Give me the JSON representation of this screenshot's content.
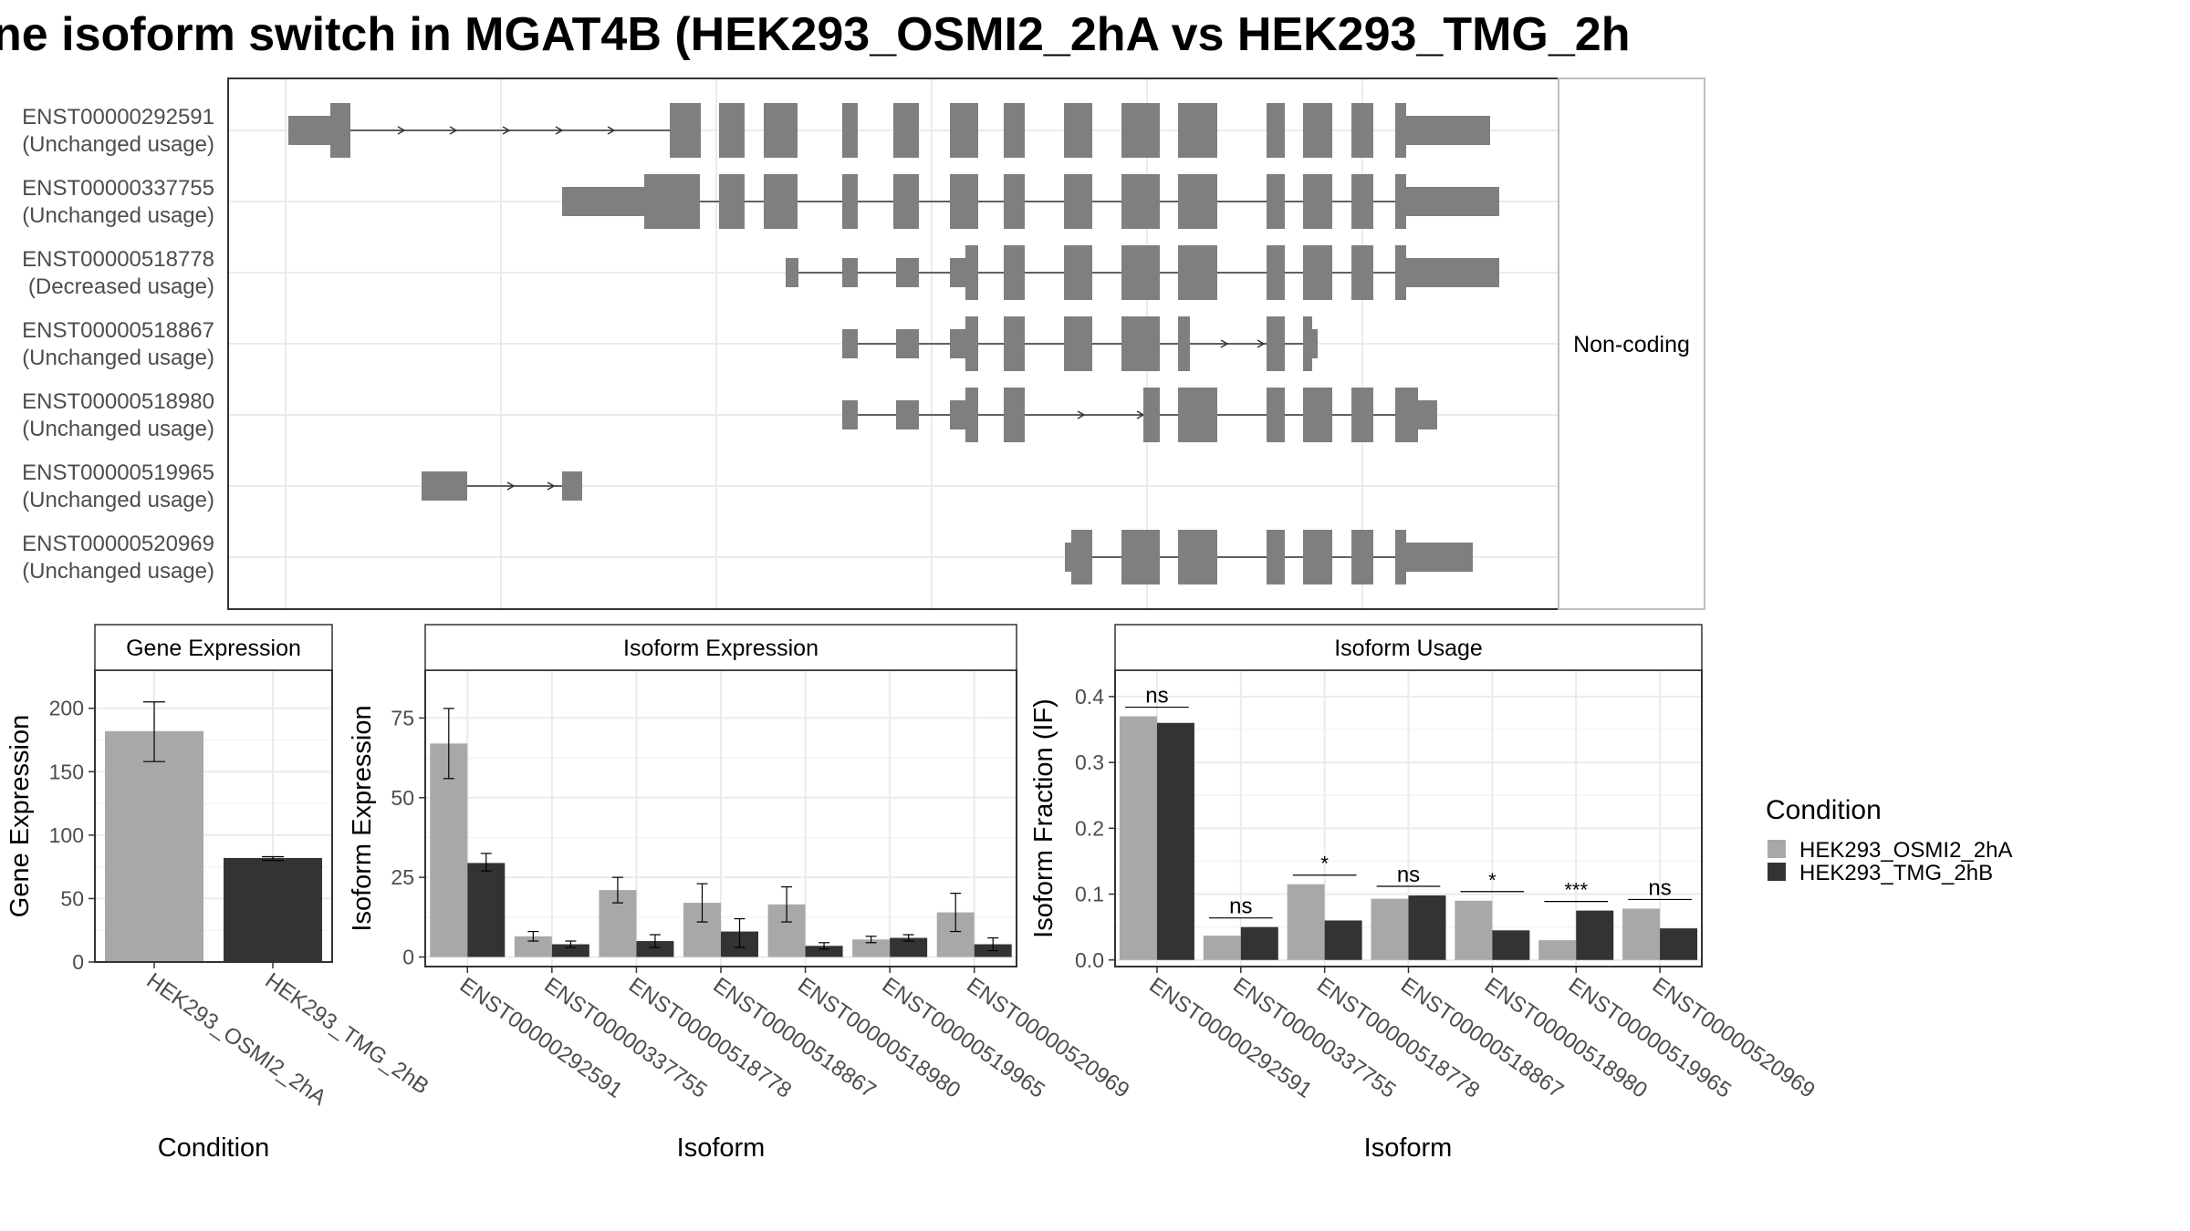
{
  "title": "ne isoform switch in MGAT4B (HEK293_OSMI2_2hA vs HEK293_TMG_2h",
  "colors": {
    "cond1": "#a8a8a8",
    "cond2": "#333333",
    "exon": "#7f7f7f",
    "grid": "#ebebeb",
    "panel_border": "#333333",
    "strip_border": "#bdbdbd",
    "axis_text": "#4d4d4d"
  },
  "structure_panel": {
    "strip_label": "Non-coding",
    "isoforms": [
      {
        "id": "ENST00000292591",
        "usage": "(Unchanged usage)"
      },
      {
        "id": "ENST00000337755",
        "usage": "(Unchanged usage)"
      },
      {
        "id": "ENST00000518778",
        "usage": "(Decreased usage)"
      },
      {
        "id": "ENST00000518867",
        "usage": "(Unchanged usage)"
      },
      {
        "id": "ENST00000518980",
        "usage": "(Unchanged usage)"
      },
      {
        "id": "ENST00000519965",
        "usage": "(Unchanged usage)"
      },
      {
        "id": "ENST00000520969",
        "usage": "(Unchanged usage)"
      }
    ]
  },
  "legend": {
    "title": "Condition",
    "items": [
      "HEK293_OSMI2_2hA",
      "HEK293_TMG_2hB"
    ]
  },
  "chart_data": [
    {
      "type": "bar",
      "title": "Gene Expression",
      "xlabel": "Condition",
      "ylabel": "Gene Expression",
      "categories": [
        "HEK293_OSMI2_2hA",
        "HEK293_TMG_2hB"
      ],
      "values": [
        182,
        82
      ],
      "error_bars": [
        [
          158,
          205
        ],
        [
          80,
          83
        ]
      ],
      "ylim": [
        0,
        230
      ],
      "yticks": [
        0,
        50,
        100,
        150,
        200
      ]
    },
    {
      "type": "bar",
      "title": "Isoform Expression",
      "xlabel": "Isoform",
      "ylabel": "Isoform Expression",
      "categories": [
        "ENST00000292591",
        "ENST00000337755",
        "ENST00000518778",
        "ENST00000518867",
        "ENST00000518980",
        "ENST00000519965",
        "ENST00000520969"
      ],
      "series": [
        {
          "name": "HEK293_OSMI2_2hA",
          "values": [
            67,
            6.5,
            21,
            17,
            16.5,
            5.5,
            14
          ],
          "error_bars": [
            [
              56,
              78
            ],
            [
              5,
              8
            ],
            [
              17,
              25
            ],
            [
              11,
              23
            ],
            [
              11,
              22
            ],
            [
              4.5,
              6.5
            ],
            [
              8,
              20
            ]
          ]
        },
        {
          "name": "HEK293_TMG_2hB",
          "values": [
            29.5,
            4,
            5,
            8,
            3.5,
            6,
            4
          ],
          "error_bars": [
            [
              27,
              32.5
            ],
            [
              3,
              5
            ],
            [
              3,
              7
            ],
            [
              3,
              12
            ],
            [
              2.5,
              4.5
            ],
            [
              5,
              7
            ],
            [
              2,
              6
            ]
          ]
        }
      ],
      "ylim": [
        -3,
        90
      ],
      "yticks": [
        0,
        25,
        50,
        75
      ]
    },
    {
      "type": "bar",
      "title": "Isoform Usage",
      "xlabel": "Isoform",
      "ylabel": "Isoform Fraction (IF)",
      "categories": [
        "ENST00000292591",
        "ENST00000337755",
        "ENST00000518778",
        "ENST00000518867",
        "ENST00000518980",
        "ENST00000519965",
        "ENST00000520969"
      ],
      "series": [
        {
          "name": "HEK293_OSMI2_2hA",
          "values": [
            0.37,
            0.037,
            0.115,
            0.093,
            0.09,
            0.03,
            0.078
          ]
        },
        {
          "name": "HEK293_TMG_2hB",
          "values": [
            0.36,
            0.05,
            0.06,
            0.098,
            0.045,
            0.075,
            0.048
          ]
        }
      ],
      "significance": [
        "ns",
        "ns",
        "*",
        "ns",
        "*",
        "***",
        "ns"
      ],
      "ylim": [
        -0.01,
        0.44
      ],
      "yticks": [
        0.0,
        0.1,
        0.2,
        0.3,
        0.4
      ]
    }
  ]
}
